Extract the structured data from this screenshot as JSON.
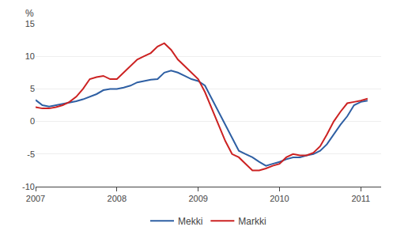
{
  "chart_data": {
    "type": "line",
    "ylabel": "%",
    "x": [
      2007,
      2007.0833333333333,
      2007.1666666666667,
      2007.25,
      2007.3333333333333,
      2007.4166666666667,
      2007.5,
      2007.5833333333333,
      2007.6666666666667,
      2007.75,
      2007.8333333333333,
      2007.9166666666667,
      2008,
      2008.0833333333333,
      2008.1666666666667,
      2008.25,
      2008.3333333333333,
      2008.4166666666667,
      2008.5,
      2008.5833333333333,
      2008.6666666666667,
      2008.75,
      2008.8333333333333,
      2008.9166666666667,
      2009,
      2009.0833333333333,
      2009.1666666666667,
      2009.25,
      2009.3333333333333,
      2009.4166666666667,
      2009.5,
      2009.5833333333333,
      2009.6666666666667,
      2009.75,
      2009.8333333333333,
      2009.9166666666667,
      2010,
      2010.0833333333333,
      2010.1666666666667,
      2010.25,
      2010.3333333333333,
      2010.4166666666667,
      2010.5,
      2010.5833333333333,
      2010.6666666666667,
      2010.75,
      2010.8333333333333,
      2010.9166666666667,
      2011,
      2011.0833333333333
    ],
    "series": [
      {
        "name": "Mekki",
        "color": "#2E5FA3",
        "values": [
          3.3,
          2.5,
          2.3,
          2.5,
          2.7,
          2.9,
          3.1,
          3.4,
          3.8,
          4.2,
          4.8,
          5.0,
          5.0,
          5.2,
          5.5,
          6.0,
          6.2,
          6.4,
          6.5,
          7.5,
          7.8,
          7.5,
          7.0,
          6.5,
          6.2,
          5.5,
          3.5,
          1.5,
          -0.5,
          -2.5,
          -4.5,
          -5.0,
          -5.5,
          -6.2,
          -6.8,
          -6.5,
          -6.2,
          -5.8,
          -5.5,
          -5.5,
          -5.2,
          -5.0,
          -4.5,
          -3.5,
          -2.0,
          -0.5,
          0.8,
          2.5,
          3.0,
          3.2
        ]
      },
      {
        "name": "Markki",
        "color": "#CC2222",
        "values": [
          2.2,
          2.0,
          2.0,
          2.2,
          2.5,
          3.0,
          3.8,
          5.0,
          6.5,
          6.8,
          7.0,
          6.5,
          6.5,
          7.5,
          8.5,
          9.5,
          10.0,
          10.5,
          11.5,
          12.0,
          11.0,
          9.5,
          8.5,
          7.5,
          6.5,
          4.5,
          2.0,
          -0.5,
          -3.0,
          -5.0,
          -5.5,
          -6.5,
          -7.5,
          -7.5,
          -7.2,
          -6.8,
          -6.5,
          -5.5,
          -5.0,
          -5.2,
          -5.2,
          -4.8,
          -3.8,
          -2.0,
          0.0,
          1.5,
          2.8,
          3.0,
          3.2,
          3.5
        ]
      }
    ],
    "xlim": [
      2007.0,
      2011.25
    ],
    "xticks": [
      2007,
      2008,
      2009,
      2010,
      2011
    ],
    "ylim": [
      -10,
      15
    ],
    "yticks": [
      -10,
      -5,
      0,
      5,
      10,
      15
    ],
    "grid": true,
    "legend": "bottom"
  }
}
